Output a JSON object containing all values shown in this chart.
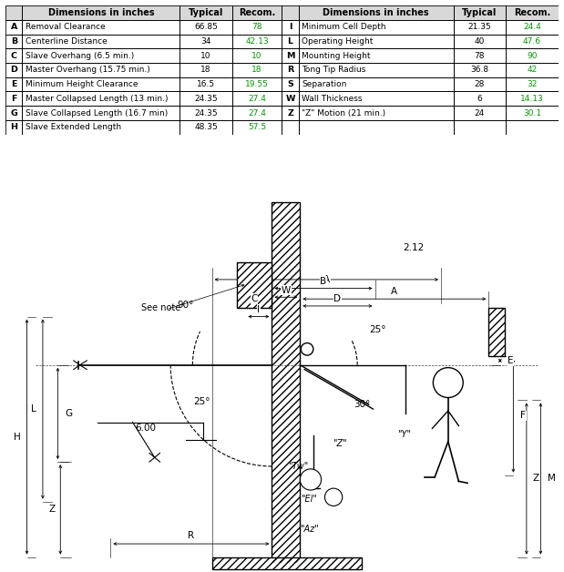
{
  "table_left_rows": [
    [
      "A",
      "Removal Clearance",
      "66.85",
      "78"
    ],
    [
      "B",
      "Centerline Distance",
      "34",
      "42.13"
    ],
    [
      "C",
      "Slave Overhang (6.5 min.)",
      "10",
      "10"
    ],
    [
      "D",
      "Master Overhang (15.75 min.)",
      "18",
      "18"
    ],
    [
      "E",
      "Minimum Height Clearance",
      "16.5",
      "19.55"
    ],
    [
      "F",
      "Master Collapsed Length (13 min.)",
      "24.35",
      "27.4"
    ],
    [
      "G",
      "Slave Collapsed Length (16.7 min)",
      "24.35",
      "27.4"
    ],
    [
      "H",
      "Slave Extended Length",
      "48.35",
      "57.5"
    ]
  ],
  "table_right_rows": [
    [
      "I",
      "Minimum Cell Depth",
      "21.35",
      "24.4"
    ],
    [
      "L",
      "Operating Height",
      "40",
      "47.6"
    ],
    [
      "M",
      "Mounting Height",
      "78",
      "90"
    ],
    [
      "R",
      "Tong Tip Radius",
      "36.8",
      "42"
    ],
    [
      "S",
      "Separation",
      "28",
      "32"
    ],
    [
      "W",
      "Wall Thickness",
      "6",
      "14.13"
    ],
    [
      "Z",
      "\"Z\" Motion (21 min.)",
      "24",
      "30.1"
    ],
    [
      "",
      "",
      "",
      ""
    ]
  ],
  "recom_green_left": [
    "78",
    "42.13",
    "10",
    "18",
    "19.55",
    "27.4",
    "27.4",
    "57.5"
  ],
  "recom_green_right": [
    "24.4",
    "47.6",
    "90",
    "42",
    "32",
    "14.13",
    "30.1",
    ""
  ],
  "green": "#009900",
  "black": "#000000",
  "header_bg": "#D8D8D8",
  "fig_w": 6.19,
  "fig_h": 6.28,
  "dpi": 100
}
